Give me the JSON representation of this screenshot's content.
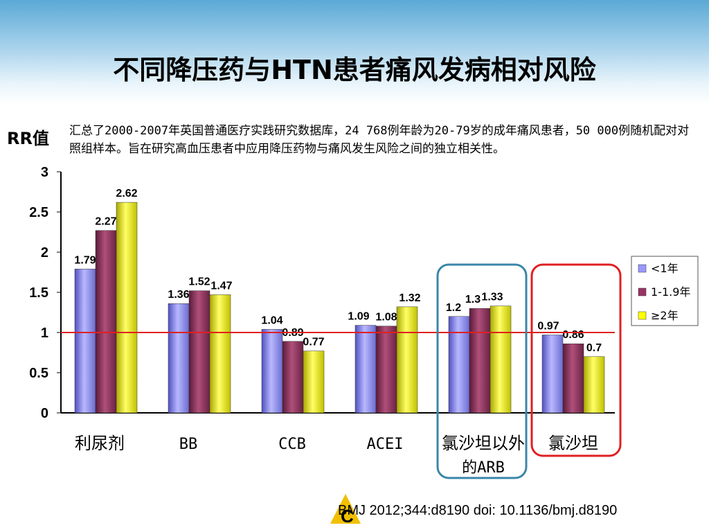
{
  "title": "不同降压药与HTN患者痛风发病相对风险",
  "description": "汇总了2000-2007年英国普通医疗实践研究数据库，24 768例年龄为20-79岁的成年痛风患者，50 000例随机配对对照组样本。旨在研究高血压患者中应用降压药物与痛风发生风险之间的独立相关性。",
  "citation": "BMJ 2012;344:d8190 doi: 10.1136/bmj.d8190",
  "logo_text": "C",
  "colors": {
    "series1": "#9999ff",
    "series2": "#993366",
    "series3": "#ffff00",
    "reference_line": "#e02020",
    "highlight_blue": "#3a86a8",
    "highlight_red": "#e02020"
  },
  "chart_data": {
    "type": "bar",
    "ylabel": "RR值",
    "ylim": [
      0,
      3
    ],
    "yticks": [
      "0",
      "0.5",
      "1",
      "1.5",
      "2",
      "2.5",
      "3"
    ],
    "reference_line": 1,
    "categories": [
      "利尿剂",
      "BB",
      "CCB",
      "ACEI",
      "氯沙坦以外的ARB",
      "氯沙坦"
    ],
    "series": [
      {
        "name": "<1年",
        "values": [
          1.79,
          1.36,
          1.04,
          1.09,
          1.2,
          0.97
        ],
        "labels": [
          "1.79",
          "1.36",
          "1.04",
          "1.09",
          "1.2",
          "0.97"
        ]
      },
      {
        "name": "1-1.9年",
        "values": [
          2.27,
          1.52,
          0.89,
          1.08,
          1.3,
          0.86
        ],
        "labels": [
          "2.27",
          "1.52",
          "0.89",
          "1.08",
          "1.3",
          "0.86"
        ]
      },
      {
        "name": "≥2年",
        "values": [
          2.62,
          1.47,
          0.77,
          1.32,
          1.33,
          0.7
        ],
        "labels": [
          "2.62",
          "1.47",
          "0.77",
          "1.32",
          "1.33",
          "0.7"
        ]
      }
    ],
    "legend_position": "right",
    "highlighted_groups": [
      "氯沙坦以外的ARB",
      "氯沙坦"
    ]
  }
}
